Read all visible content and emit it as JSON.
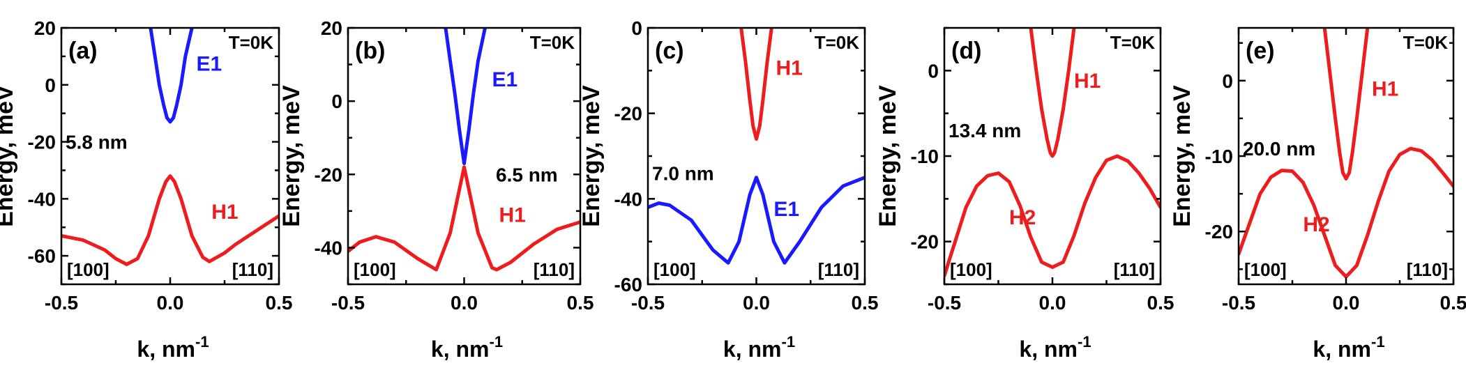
{
  "chart_data": [
    {
      "type": "line",
      "panel_label": "(a)",
      "temperature": "T=0K",
      "thickness": "5.8 nm",
      "xlabel": "k, nm",
      "xlabel_sup": "-1",
      "ylabel": "Energy, meV",
      "xlim": [
        -0.5,
        0.5
      ],
      "ylim": [
        -70,
        20
      ],
      "xticks": [
        -0.5,
        0.0,
        0.5
      ],
      "xtick_labels": [
        "-0.5",
        "0.0",
        "0.5"
      ],
      "yticks": [
        20,
        0,
        -20,
        -40,
        -60
      ],
      "ytick_labels": [
        "20",
        "0",
        "-20",
        "-40",
        "-60"
      ],
      "direction_left": "[100]",
      "direction_right": "[110]",
      "series": [
        {
          "name": "E1",
          "color": "#1a1aff",
          "label_at": [
            0.12,
            5
          ],
          "x": [
            -0.09,
            -0.07,
            -0.05,
            -0.03,
            -0.015,
            0.0,
            0.015,
            0.03,
            0.05,
            0.07,
            0.1
          ],
          "y": [
            20,
            10,
            0,
            -7,
            -11.5,
            -13,
            -11.5,
            -7,
            0,
            10,
            20
          ]
        },
        {
          "name": "H1",
          "color": "#ee1c1c",
          "label_at": [
            0.19,
            -47
          ],
          "x": [
            -0.5,
            -0.4,
            -0.3,
            -0.25,
            -0.2,
            -0.15,
            -0.1,
            -0.05,
            -0.02,
            0.0,
            0.02,
            0.05,
            0.1,
            0.15,
            0.18,
            0.25,
            0.3,
            0.4,
            0.5
          ],
          "y": [
            -53,
            -54.5,
            -58,
            -61,
            -63,
            -61,
            -53,
            -40,
            -34,
            -32,
            -34,
            -40,
            -53,
            -60.5,
            -62,
            -59,
            -56,
            -51,
            -46
          ]
        }
      ]
    },
    {
      "type": "line",
      "panel_label": "(b)",
      "temperature": "T=0K",
      "thickness": "6.5 nm",
      "xlabel": "k, nm",
      "xlabel_sup": "-1",
      "ylabel": "Energy, meV",
      "xlim": [
        -0.5,
        0.5
      ],
      "ylim": [
        -50,
        20
      ],
      "xticks": [
        -0.5,
        0.0,
        0.5
      ],
      "xtick_labels": [
        "-0.5",
        "0.0",
        "0.5"
      ],
      "yticks": [
        20,
        0,
        -20,
        -40
      ],
      "ytick_labels": [
        "20",
        "0",
        "-20",
        "-40"
      ],
      "direction_left": "[100]",
      "direction_right": "[110]",
      "series": [
        {
          "name": "E1",
          "color": "#1a1aff",
          "label_at": [
            0.12,
            4
          ],
          "x": [
            -0.08,
            -0.06,
            -0.04,
            -0.02,
            0.0,
            0.02,
            0.04,
            0.06,
            0.09
          ],
          "y": [
            20,
            11,
            2,
            -8,
            -17,
            -8,
            2,
            11,
            20
          ]
        },
        {
          "name": "H1",
          "color": "#ee1c1c",
          "label_at": [
            0.15,
            -33
          ],
          "x": [
            -0.5,
            -0.45,
            -0.38,
            -0.3,
            -0.2,
            -0.12,
            -0.06,
            -0.02,
            0.0,
            0.02,
            0.06,
            0.12,
            0.14,
            0.2,
            0.3,
            0.4,
            0.5
          ],
          "y": [
            -41,
            -38.5,
            -37,
            -38.5,
            -43,
            -46,
            -36,
            -24,
            -18,
            -24,
            -36,
            -45.5,
            -46,
            -44,
            -39,
            -35,
            -33
          ]
        }
      ]
    },
    {
      "type": "line",
      "panel_label": "(c)",
      "temperature": "T=0K",
      "thickness": "7.0 nm",
      "xlabel": "k, nm",
      "xlabel_sup": "-1",
      "ylabel": "Energy, meV",
      "xlim": [
        -0.5,
        0.5
      ],
      "ylim": [
        -60,
        0
      ],
      "xticks": [
        -0.5,
        0.0,
        0.5
      ],
      "xtick_labels": [
        "-0.5",
        "0.0",
        "0.5"
      ],
      "yticks": [
        0,
        -20,
        -40,
        -60
      ],
      "ytick_labels": [
        "0",
        "-20",
        "-40",
        "-60"
      ],
      "direction_left": "[100]",
      "direction_right": "[110]",
      "series": [
        {
          "name": "H1",
          "color": "#ee1c1c",
          "label_at": [
            0.09,
            -11
          ],
          "x": [
            -0.07,
            -0.05,
            -0.03,
            -0.015,
            0.0,
            0.015,
            0.03,
            0.05,
            0.07
          ],
          "y": [
            0,
            -8,
            -17,
            -23,
            -26,
            -23,
            -17,
            -8,
            0
          ]
        },
        {
          "name": "E1",
          "color": "#1a1aff",
          "label_at": [
            0.08,
            -44
          ],
          "x": [
            -0.5,
            -0.45,
            -0.4,
            -0.3,
            -0.2,
            -0.13,
            -0.08,
            -0.03,
            0.0,
            0.03,
            0.08,
            0.13,
            0.2,
            0.3,
            0.4,
            0.5
          ],
          "y": [
            -42,
            -41,
            -41.5,
            -45,
            -52,
            -55,
            -50,
            -39,
            -35,
            -39,
            -50,
            -55,
            -50,
            -42,
            -37,
            -35
          ]
        }
      ]
    },
    {
      "type": "line",
      "panel_label": "(d)",
      "temperature": "T=0K",
      "thickness": "13.4 nm",
      "xlabel": "k, nm",
      "xlabel_sup": "-1",
      "ylabel": "Energy, meV",
      "xlim": [
        -0.5,
        0.5
      ],
      "ylim": [
        -25,
        5
      ],
      "xticks": [
        -0.5,
        0.0,
        0.5
      ],
      "xtick_labels": [
        "-0.5",
        "0.0",
        "0.5"
      ],
      "yticks": [
        0,
        -10,
        -20
      ],
      "ytick_labels": [
        "0",
        "-10",
        "-20"
      ],
      "direction_left": "[100]",
      "direction_right": "[110]",
      "series": [
        {
          "name": "H1",
          "color": "#ee1c1c",
          "label_at": [
            0.1,
            -2
          ],
          "x": [
            -0.1,
            -0.075,
            -0.05,
            -0.025,
            -0.01,
            0.0,
            0.01,
            0.025,
            0.05,
            0.075,
            0.1
          ],
          "y": [
            5,
            0,
            -4.5,
            -8,
            -9.6,
            -10,
            -9.6,
            -8,
            -4.5,
            0,
            5
          ]
        },
        {
          "name": "H2",
          "color": "#ee1c1c",
          "label_at": [
            -0.2,
            -18
          ],
          "x": [
            -0.5,
            -0.45,
            -0.4,
            -0.35,
            -0.3,
            -0.25,
            -0.2,
            -0.15,
            -0.1,
            -0.05,
            0.0,
            0.05,
            0.1,
            0.15,
            0.2,
            0.25,
            0.3,
            0.35,
            0.4,
            0.45,
            0.5
          ],
          "y": [
            -24,
            -20,
            -16,
            -13.5,
            -12.3,
            -12,
            -13,
            -15.8,
            -19.5,
            -22.4,
            -23,
            -22.4,
            -19.3,
            -15.5,
            -12.5,
            -10.5,
            -10,
            -10.6,
            -12,
            -13.8,
            -16
          ]
        }
      ]
    },
    {
      "type": "line",
      "panel_label": "(e)",
      "temperature": "T=0K",
      "thickness": "20.0 nm",
      "xlabel": "k, nm",
      "xlabel_sup": "-1",
      "ylabel": "Energy, meV",
      "xlim": [
        -0.5,
        0.5
      ],
      "ylim": [
        -27,
        7
      ],
      "xticks": [
        -0.5,
        0.0,
        0.5
      ],
      "xtick_labels": [
        "-0.5",
        "0.0",
        "0.5"
      ],
      "yticks": [
        0,
        -10,
        -20
      ],
      "ytick_labels": [
        "0",
        "-10",
        "-20"
      ],
      "direction_left": "[100]",
      "direction_right": "[110]",
      "series": [
        {
          "name": "H1",
          "color": "#ee1c1c",
          "label_at": [
            0.12,
            -2
          ],
          "x": [
            -0.1,
            -0.075,
            -0.05,
            -0.03,
            -0.015,
            0.0,
            0.015,
            0.03,
            0.05,
            0.075,
            0.1
          ],
          "y": [
            7,
            1,
            -5,
            -9.5,
            -12.2,
            -13,
            -12.2,
            -9.5,
            -5,
            1,
            7
          ]
        },
        {
          "name": "H2",
          "color": "#ee1c1c",
          "label_at": [
            -0.2,
            -20
          ],
          "x": [
            -0.5,
            -0.45,
            -0.4,
            -0.35,
            -0.3,
            -0.25,
            -0.2,
            -0.15,
            -0.1,
            -0.05,
            0.0,
            0.05,
            0.1,
            0.15,
            0.2,
            0.25,
            0.3,
            0.35,
            0.4,
            0.45,
            0.5
          ],
          "y": [
            -23,
            -19,
            -15,
            -12.8,
            -11.9,
            -12,
            -13.5,
            -16.5,
            -20.5,
            -24.5,
            -26,
            -24.5,
            -20.5,
            -16,
            -12,
            -9.8,
            -9,
            -9.3,
            -10.5,
            -12.2,
            -14
          ]
        }
      ]
    }
  ]
}
